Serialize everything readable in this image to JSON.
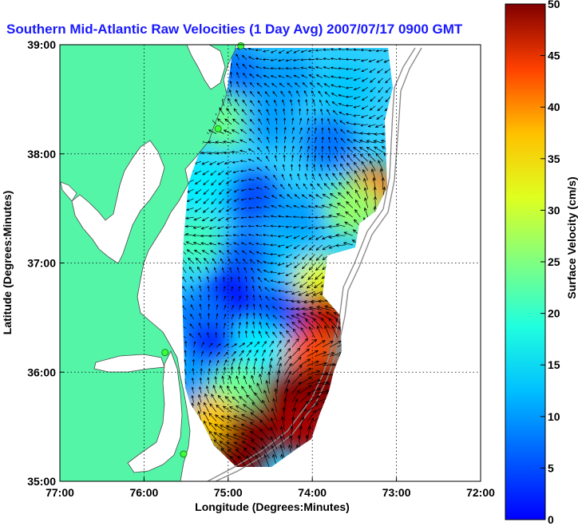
{
  "chart_data": {
    "type": "heatmap",
    "title": "Southern Mid-Atlantic Raw Velocities (1 Day Avg) 2007/07/17 0900 GMT",
    "xlabel": "Longitude (Degrees:Minutes)",
    "ylabel": "Latitude (Degrees:Minutes)",
    "colorbar_label": "Surface Velocity (cm/s)",
    "xlim": [
      -77,
      -72
    ],
    "ylim": [
      35,
      39
    ],
    "clim": [
      0,
      50
    ],
    "x_ticks": [
      {
        "value": -77,
        "label": "77:00"
      },
      {
        "value": -76,
        "label": "76:00"
      },
      {
        "value": -75,
        "label": "75:00"
      },
      {
        "value": -74,
        "label": "74:00"
      },
      {
        "value": -73,
        "label": "73:00"
      },
      {
        "value": -72,
        "label": "72:00"
      }
    ],
    "y_ticks": [
      {
        "value": 35,
        "label": "35:00"
      },
      {
        "value": 36,
        "label": "36:00"
      },
      {
        "value": 37,
        "label": "37:00"
      },
      {
        "value": 38,
        "label": "38:00"
      },
      {
        "value": 39,
        "label": "39:00"
      }
    ],
    "colorbar_ticks": [
      0,
      5,
      10,
      15,
      20,
      25,
      30,
      35,
      40,
      45,
      50
    ],
    "grid": true,
    "colormap": "jet",
    "land_color": "#55f5a8",
    "stations": [
      {
        "lon": -74.85,
        "lat": 38.99
      },
      {
        "lon": -75.12,
        "lat": 38.23
      },
      {
        "lon": -75.75,
        "lat": 36.18
      },
      {
        "lon": -75.53,
        "lat": 35.25
      }
    ],
    "velocity_regions": [
      {
        "lon": -74.9,
        "lat": 38.75,
        "speed": 12
      },
      {
        "lon": -74.3,
        "lat": 38.7,
        "speed": 14
      },
      {
        "lon": -73.6,
        "lat": 38.6,
        "speed": 16
      },
      {
        "lon": -75.05,
        "lat": 38.3,
        "speed": 24
      },
      {
        "lon": -74.5,
        "lat": 38.3,
        "speed": 14
      },
      {
        "lon": -73.8,
        "lat": 38.1,
        "speed": 12
      },
      {
        "lon": -73.3,
        "lat": 37.65,
        "speed": 38
      },
      {
        "lon": -73.5,
        "lat": 37.5,
        "speed": 26
      },
      {
        "lon": -75.3,
        "lat": 37.7,
        "speed": 18
      },
      {
        "lon": -74.7,
        "lat": 37.6,
        "speed": 10
      },
      {
        "lon": -74.2,
        "lat": 37.4,
        "speed": 14
      },
      {
        "lon": -75.4,
        "lat": 37.2,
        "speed": 22
      },
      {
        "lon": -74.8,
        "lat": 37.05,
        "speed": 11
      },
      {
        "lon": -74.2,
        "lat": 37.0,
        "speed": 16
      },
      {
        "lon": -73.9,
        "lat": 36.8,
        "speed": 30
      },
      {
        "lon": -75.0,
        "lat": 36.7,
        "speed": 7
      },
      {
        "lon": -74.4,
        "lat": 36.55,
        "speed": 10
      },
      {
        "lon": -73.85,
        "lat": 36.5,
        "speed": 47
      },
      {
        "lon": -75.35,
        "lat": 36.5,
        "speed": 12
      },
      {
        "lon": -75.2,
        "lat": 36.2,
        "speed": 8
      },
      {
        "lon": -74.6,
        "lat": 36.2,
        "speed": 18
      },
      {
        "lon": -74.0,
        "lat": 36.15,
        "speed": 40
      },
      {
        "lon": -75.4,
        "lat": 35.9,
        "speed": 14
      },
      {
        "lon": -74.9,
        "lat": 35.85,
        "speed": 24
      },
      {
        "lon": -74.3,
        "lat": 35.8,
        "speed": 50
      },
      {
        "lon": -73.85,
        "lat": 35.85,
        "speed": 50
      },
      {
        "lon": -75.2,
        "lat": 35.55,
        "speed": 34
      },
      {
        "lon": -74.7,
        "lat": 35.45,
        "speed": 50
      },
      {
        "lon": -74.1,
        "lat": 35.5,
        "speed": 48
      },
      {
        "lon": -74.9,
        "lat": 35.2,
        "speed": 50
      }
    ]
  }
}
